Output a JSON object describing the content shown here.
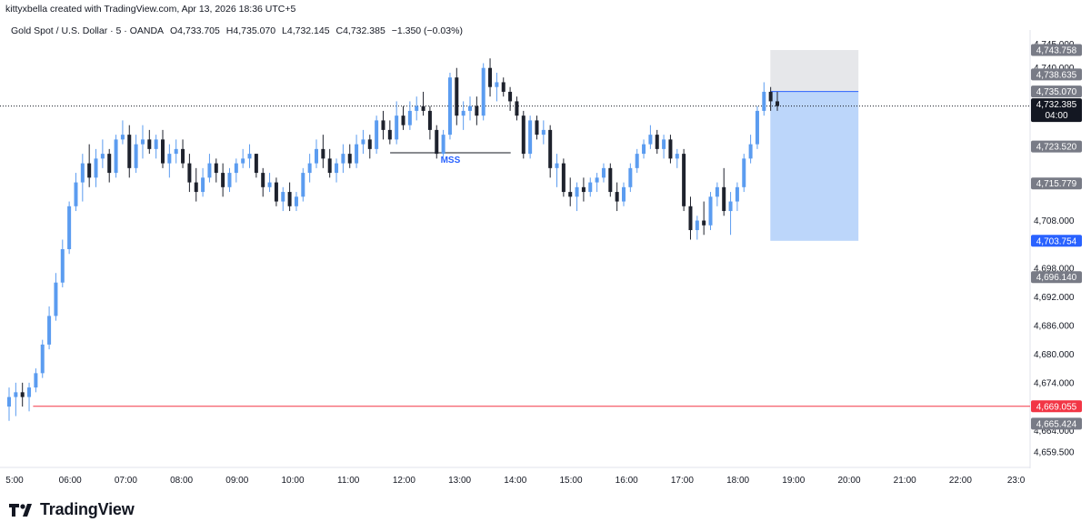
{
  "header": {
    "credit": "kittyxbella created with TradingView.com, Apr 13, 2026 18:36 UTC+5"
  },
  "legend": {
    "symbol": "Gold Spot / U.S. Dollar · 5 · OANDA",
    "open": "O4,733.705",
    "high": "H4,735.070",
    "low": "L4,732.145",
    "close": "C4,732.385",
    "change": "−1.350 (−0.03%)"
  },
  "brand": {
    "name": "TradingView"
  },
  "colors": {
    "up": "#5b9cf0",
    "down": "#1e222d",
    "current_line": "#131722",
    "support_line": "#f23645",
    "target_zone": "#bcd6fa",
    "stop_zone": "#e6e7ea",
    "entry_line": "#2962ff",
    "mss_text": "#2962ff"
  },
  "chart_data": {
    "type": "candlestick",
    "timeframe": "5",
    "x_tick_labels": [
      "5:00",
      "06:00",
      "07:00",
      "08:00",
      "09:00",
      "10:00",
      "11:00",
      "12:00",
      "13:00",
      "14:00",
      "15:00",
      "16:00",
      "17:00",
      "18:00",
      "19:00",
      "20:00",
      "21:00",
      "22:00",
      "23:0"
    ],
    "y_tick_labels": [
      "4,745.000",
      "4,740.000",
      "4,708.000",
      "4,698.000",
      "4,692.000",
      "4,686.000",
      "4,680.000",
      "4,674.000",
      "4,664.000",
      "4,659.500"
    ],
    "ylim": [
      4657,
      4747
    ],
    "price_tags": [
      {
        "label": "4,743.758",
        "price": 4743.758,
        "style": "gray"
      },
      {
        "label": "4,738.635",
        "price": 4738.635,
        "style": "gray"
      },
      {
        "label": "4,735.070",
        "price": 4735.07,
        "style": "gray"
      },
      {
        "label": "4,732.385",
        "sub": "04:00",
        "price": 4732.385,
        "style": "dark"
      },
      {
        "label": "4,723.520",
        "price": 4723.52,
        "style": "gray"
      },
      {
        "label": "4,715.779",
        "price": 4715.779,
        "style": "gray"
      },
      {
        "label": "4,703.754",
        "price": 4703.754,
        "style": "blue"
      },
      {
        "label": "4,696.140",
        "price": 4696.14,
        "style": "gray"
      },
      {
        "label": "4,669.055",
        "price": 4669.055,
        "style": "red"
      },
      {
        "label": "4,665.424",
        "price": 4665.424,
        "style": "gray"
      }
    ],
    "annotations": [
      {
        "type": "horizontal_segment",
        "label": "MSS",
        "price": 4722.2,
        "x_start": "11:45",
        "x_end": "13:55"
      },
      {
        "type": "horizontal_ray",
        "price": 4669.055,
        "x_start": "05:20"
      },
      {
        "type": "short_position",
        "entry": 4735.07,
        "stop": 4743.758,
        "target": 4703.754,
        "x_start": "18:35",
        "x_end": "20:10"
      }
    ],
    "candles": [
      [
        4669,
        4673,
        4666,
        4671
      ],
      [
        4671,
        4674,
        4667,
        4672
      ],
      [
        4672,
        4674,
        4669,
        4671
      ],
      [
        4671,
        4674,
        4668,
        4673
      ],
      [
        4673,
        4677,
        4672,
        4676
      ],
      [
        4676,
        4683,
        4675,
        4682
      ],
      [
        4682,
        4690,
        4681,
        4688
      ],
      [
        4688,
        4697,
        4687,
        4695
      ],
      [
        4695,
        4704,
        4694,
        4702
      ],
      [
        4702,
        4712,
        4701,
        4711
      ],
      [
        4711,
        4718,
        4710,
        4716
      ],
      [
        4716,
        4722,
        4712,
        4720
      ],
      [
        4720,
        4724,
        4715,
        4717
      ],
      [
        4717,
        4723,
        4715,
        4721
      ],
      [
        4721,
        4725,
        4719,
        4722
      ],
      [
        4722,
        4723,
        4716,
        4718
      ],
      [
        4718,
        4726,
        4717,
        4725
      ],
      [
        4725,
        4729,
        4724,
        4726
      ],
      [
        4726,
        4728,
        4717,
        4719
      ],
      [
        4719,
        4726,
        4718,
        4724
      ],
      [
        4724,
        4728,
        4721,
        4725
      ],
      [
        4725,
        4727,
        4722,
        4723
      ],
      [
        4723,
        4726,
        4721,
        4725
      ],
      [
        4725,
        4727,
        4719,
        4720
      ],
      [
        4720,
        4724,
        4717,
        4722
      ],
      [
        4722,
        4725,
        4720,
        4723
      ],
      [
        4723,
        4725,
        4719,
        4720
      ],
      [
        4720,
        4722,
        4714,
        4716
      ],
      [
        4716,
        4719,
        4712,
        4714
      ],
      [
        4714,
        4719,
        4713,
        4717
      ],
      [
        4717,
        4722,
        4716,
        4720
      ],
      [
        4720,
        4721,
        4716,
        4718
      ],
      [
        4718,
        4720,
        4713,
        4715
      ],
      [
        4715,
        4719,
        4714,
        4718
      ],
      [
        4718,
        4721,
        4716,
        4720
      ],
      [
        4720,
        4723,
        4719,
        4721
      ],
      [
        4721,
        4724,
        4719,
        4722
      ],
      [
        4722,
        4722,
        4717,
        4718
      ],
      [
        4718,
        4719,
        4713,
        4715
      ],
      [
        4715,
        4718,
        4714,
        4716
      ],
      [
        4716,
        4717,
        4711,
        4712
      ],
      [
        4712,
        4715,
        4710,
        4714
      ],
      [
        4714,
        4716,
        4710,
        4711
      ],
      [
        4711,
        4714,
        4710,
        4713
      ],
      [
        4713,
        4719,
        4712,
        4718
      ],
      [
        4718,
        4722,
        4716,
        4720
      ],
      [
        4720,
        4725,
        4719,
        4723
      ],
      [
        4723,
        4726,
        4719,
        4721
      ],
      [
        4721,
        4723,
        4717,
        4718
      ],
      [
        4718,
        4721,
        4716,
        4720
      ],
      [
        4720,
        4724,
        4718,
        4722
      ],
      [
        4722,
        4724,
        4719,
        4720
      ],
      [
        4720,
        4726,
        4719,
        4724
      ],
      [
        4724,
        4727,
        4722,
        4725
      ],
      [
        4725,
        4726,
        4721,
        4723
      ],
      [
        4723,
        4730,
        4722,
        4729
      ],
      [
        4729,
        4731,
        4725,
        4727
      ],
      [
        4727,
        4729,
        4724,
        4725
      ],
      [
        4725,
        4733,
        4724,
        4730
      ],
      [
        4730,
        4732,
        4727,
        4728
      ],
      [
        4728,
        4733,
        4727,
        4731
      ],
      [
        4731,
        4734,
        4729,
        4732
      ],
      [
        4732,
        4735,
        4730,
        4731
      ],
      [
        4731,
        4732,
        4725,
        4727
      ],
      [
        4727,
        4728,
        4721,
        4722
      ],
      [
        4722,
        4727,
        4721,
        4726
      ],
      [
        4726,
        4739,
        4725,
        4738
      ],
      [
        4738,
        4740,
        4728,
        4730
      ],
      [
        4730,
        4733,
        4727,
        4731
      ],
      [
        4731,
        4734,
        4729,
        4732
      ],
      [
        4732,
        4734,
        4728,
        4730
      ],
      [
        4730,
        4741,
        4729,
        4740
      ],
      [
        4740,
        4742,
        4734,
        4736
      ],
      [
        4736,
        4739,
        4733,
        4737
      ],
      [
        4737,
        4738,
        4734,
        4735
      ],
      [
        4735,
        4736,
        4731,
        4733
      ],
      [
        4733,
        4734,
        4729,
        4730
      ],
      [
        4730,
        4731,
        4721,
        4722
      ],
      [
        4722,
        4730,
        4721,
        4729
      ],
      [
        4729,
        4730,
        4725,
        4726
      ],
      [
        4726,
        4729,
        4724,
        4727
      ],
      [
        4727,
        4728,
        4717,
        4719
      ],
      [
        4719,
        4722,
        4715,
        4720
      ],
      [
        4720,
        4721,
        4713,
        4714
      ],
      [
        4714,
        4717,
        4711,
        4713
      ],
      [
        4713,
        4716,
        4710,
        4715
      ],
      [
        4715,
        4717,
        4712,
        4714
      ],
      [
        4714,
        4717,
        4713,
        4716
      ],
      [
        4716,
        4718,
        4714,
        4717
      ],
      [
        4717,
        4720,
        4716,
        4719
      ],
      [
        4719,
        4720,
        4713,
        4714
      ],
      [
        4714,
        4716,
        4710,
        4712
      ],
      [
        4712,
        4716,
        4711,
        4715
      ],
      [
        4715,
        4720,
        4714,
        4719
      ],
      [
        4719,
        4723,
        4718,
        4722
      ],
      [
        4722,
        4725,
        4721,
        4724
      ],
      [
        4724,
        4728,
        4723,
        4726
      ],
      [
        4726,
        4727,
        4722,
        4723
      ],
      [
        4723,
        4726,
        4721,
        4725
      ],
      [
        4725,
        4726,
        4720,
        4721
      ],
      [
        4721,
        4723,
        4719,
        4722
      ],
      [
        4722,
        4723,
        4710,
        4711
      ],
      [
        4711,
        4713,
        4704,
        4706
      ],
      [
        4706,
        4709,
        4704,
        4708
      ],
      [
        4708,
        4712,
        4705,
        4707
      ],
      [
        4707,
        4714,
        4706,
        4713
      ],
      [
        4713,
        4716,
        4711,
        4715
      ],
      [
        4715,
        4719,
        4709,
        4710
      ],
      [
        4710,
        4714,
        4705,
        4712
      ],
      [
        4712,
        4716,
        4710,
        4715
      ],
      [
        4715,
        4722,
        4714,
        4721
      ],
      [
        4721,
        4726,
        4720,
        4724
      ],
      [
        4724,
        4732,
        4723,
        4731
      ],
      [
        4731,
        4737,
        4730,
        4735
      ],
      [
        4735,
        4736,
        4731,
        4733
      ],
      [
        4733,
        4735,
        4731,
        4732
      ]
    ]
  }
}
